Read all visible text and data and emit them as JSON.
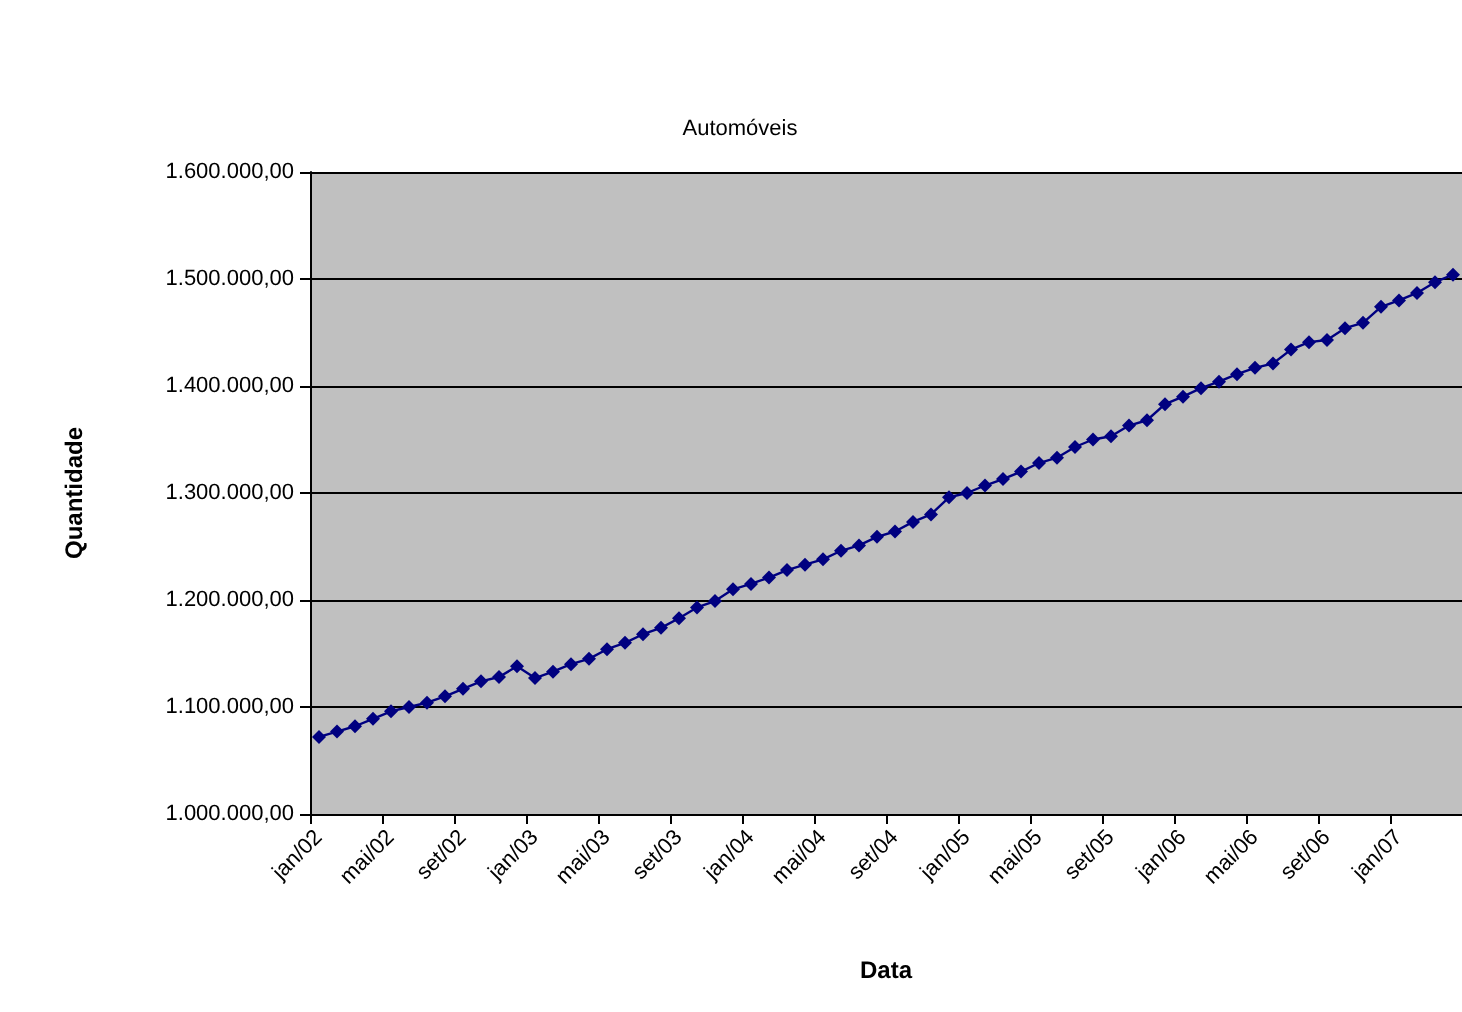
{
  "chart_data": {
    "type": "line",
    "title": "Automóveis",
    "xlabel": "Data",
    "ylabel": "Quantidade",
    "categories": [
      "jan/02",
      null,
      null,
      null,
      "mai/02",
      null,
      null,
      null,
      "set/02",
      null,
      null,
      null,
      "jan/03",
      null,
      null,
      null,
      "mai/03",
      null,
      null,
      null,
      "set/03",
      null,
      null,
      null,
      "jan/04",
      null,
      null,
      null,
      "mai/04",
      null,
      null,
      null,
      "set/04",
      null,
      null,
      null,
      "jan/05",
      null,
      null,
      null,
      "mai/05",
      null,
      null,
      null,
      "set/05",
      null,
      null,
      null,
      "jan/06",
      null,
      null,
      null,
      "mai/06",
      null,
      null,
      null,
      "set/06",
      null,
      null,
      null,
      "jan/07",
      null,
      null,
      null
    ],
    "series": [
      {
        "color": "#000080",
        "values": [
          1072000,
          1077000,
          1082000,
          1089000,
          1096000,
          1100000,
          1104000,
          1110000,
          1117000,
          1124000,
          1128000,
          1138000,
          1127000,
          1133000,
          1140000,
          1145000,
          1154000,
          1160000,
          1168000,
          1174000,
          1183000,
          1193000,
          1199000,
          1210000,
          1215000,
          1221000,
          1228000,
          1233000,
          1238000,
          1246000,
          1251000,
          1259000,
          1264000,
          1273000,
          1280000,
          1296000,
          1300000,
          1307000,
          1313000,
          1320000,
          1328000,
          1333000,
          1343000,
          1350000,
          1353000,
          1363000,
          1368000,
          1383000,
          1390000,
          1398000,
          1404000,
          1411000,
          1417000,
          1421000,
          1434000,
          1441000,
          1443000,
          1454000,
          1459000,
          1474000,
          1480000,
          1487000,
          1497000,
          1504000
        ]
      }
    ],
    "ylim": [
      1000000,
      1600000
    ],
    "yticks": [
      {
        "value": 1000000,
        "label": "1.000.000,00"
      },
      {
        "value": 1100000,
        "label": "1.100.000,00"
      },
      {
        "value": 1200000,
        "label": "1.200.000,00"
      },
      {
        "value": 1300000,
        "label": "1.300.000,00"
      },
      {
        "value": 1400000,
        "label": "1.400.000,00"
      },
      {
        "value": 1500000,
        "label": "1.500.000,00"
      },
      {
        "value": 1600000,
        "label": "1.600.000,00"
      }
    ],
    "grid": "y",
    "marker": "diamond",
    "line_style": "solid"
  }
}
